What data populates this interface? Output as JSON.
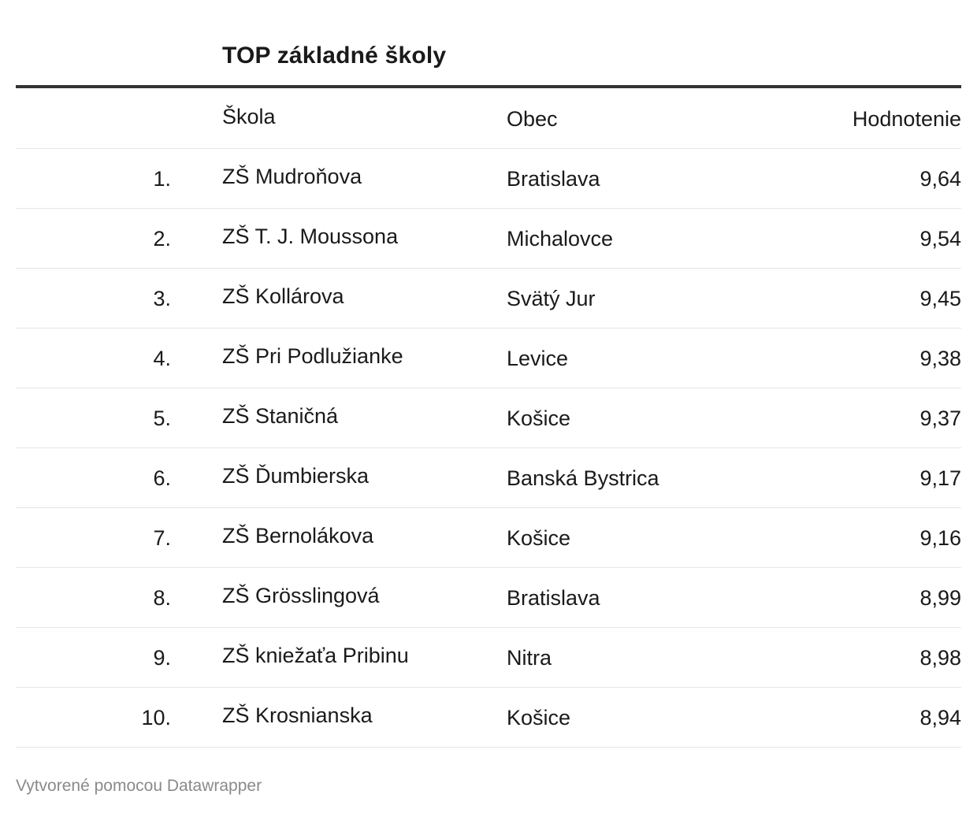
{
  "title": "TOP základné školy",
  "columns": {
    "rank": "",
    "school": "Škola",
    "town": "Obec",
    "score": "Hodnotenie"
  },
  "rows": [
    {
      "rank": "1.",
      "school": "ZŠ Mudroňova",
      "town": "Bratislava",
      "score": "9,64"
    },
    {
      "rank": "2.",
      "school": "ZŠ T. J. Moussona",
      "town": "Michalovce",
      "score": "9,54"
    },
    {
      "rank": "3.",
      "school": "ZŠ Kollárova",
      "town": "Svätý Jur",
      "score": "9,45"
    },
    {
      "rank": "4.",
      "school": "ZŠ Pri Podlužianke",
      "town": "Levice",
      "score": "9,38"
    },
    {
      "rank": "5.",
      "school": "ZŠ Staničná",
      "town": "Košice",
      "score": "9,37"
    },
    {
      "rank": "6.",
      "school": "ZŠ Ďumbierska",
      "town": "Banská Bystrica",
      "score": "9,17"
    },
    {
      "rank": "7.",
      "school": "ZŠ Bernolákova",
      "town": "Košice",
      "score": "9,16"
    },
    {
      "rank": "8.",
      "school": "ZŠ Grösslingová",
      "town": "Bratislava",
      "score": "8,99"
    },
    {
      "rank": "9.",
      "school": "ZŠ kniežaťa Pribinu",
      "town": "Nitra",
      "score": "8,98"
    },
    {
      "rank": "10.",
      "school": "ZŠ Krosnianska",
      "town": "Košice",
      "score": "8,94"
    }
  ],
  "footer": "Vytvorené pomocou Datawrapper"
}
